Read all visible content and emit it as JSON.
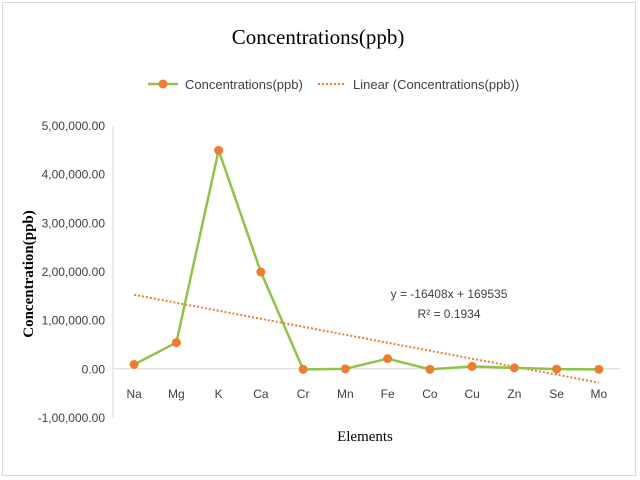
{
  "chart_data": {
    "type": "line",
    "title": "Concentrations(ppb)",
    "xlabel": "Elements",
    "ylabel": "Concentration(ppb)",
    "categories": [
      "Na",
      "Mg",
      "K",
      "Ca",
      "Cr",
      "Mn",
      "Fe",
      "Co",
      "Cu",
      "Zn",
      "Se",
      "Mo"
    ],
    "series": [
      {
        "name": "Concentrations(ppb)",
        "color": "#8fc34a",
        "marker_color": "#ed7d31",
        "values": [
          10000,
          55000,
          450000,
          200000,
          0,
          1000,
          22000,
          0,
          6000,
          3000,
          500,
          0
        ]
      }
    ],
    "trendline": {
      "name": "Linear (Concentrations(ppb))",
      "color": "#ed7d31",
      "slope": -16408,
      "intercept": 169535,
      "equation": "y = -16408x + 169535",
      "r_squared": "R² = 0.1934"
    },
    "ylim": [
      -100000,
      500000
    ],
    "yticks": [
      -100000,
      0,
      100000,
      200000,
      300000,
      400000,
      500000
    ],
    "ytick_labels": [
      "-1,00,000.00",
      "0.00",
      "1,00,000.00",
      "2,00,000.00",
      "3,00,000.00",
      "4,00,000.00",
      "5,00,000.00"
    ],
    "grid": false,
    "legend_position": "top"
  }
}
